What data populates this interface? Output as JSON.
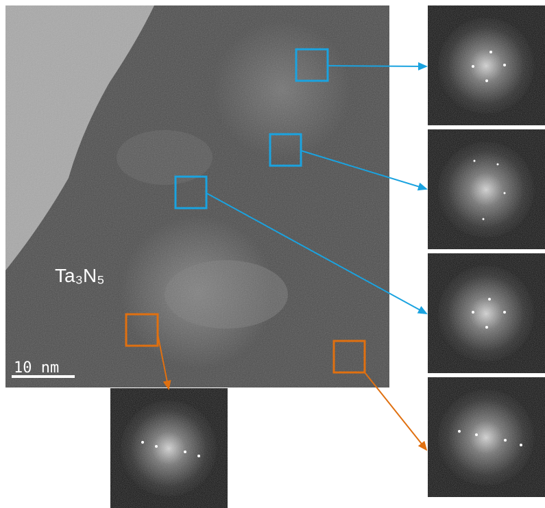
{
  "image": {
    "material_label": "Ta₃N₅",
    "scale_bar_label": "10 nm"
  }
}
